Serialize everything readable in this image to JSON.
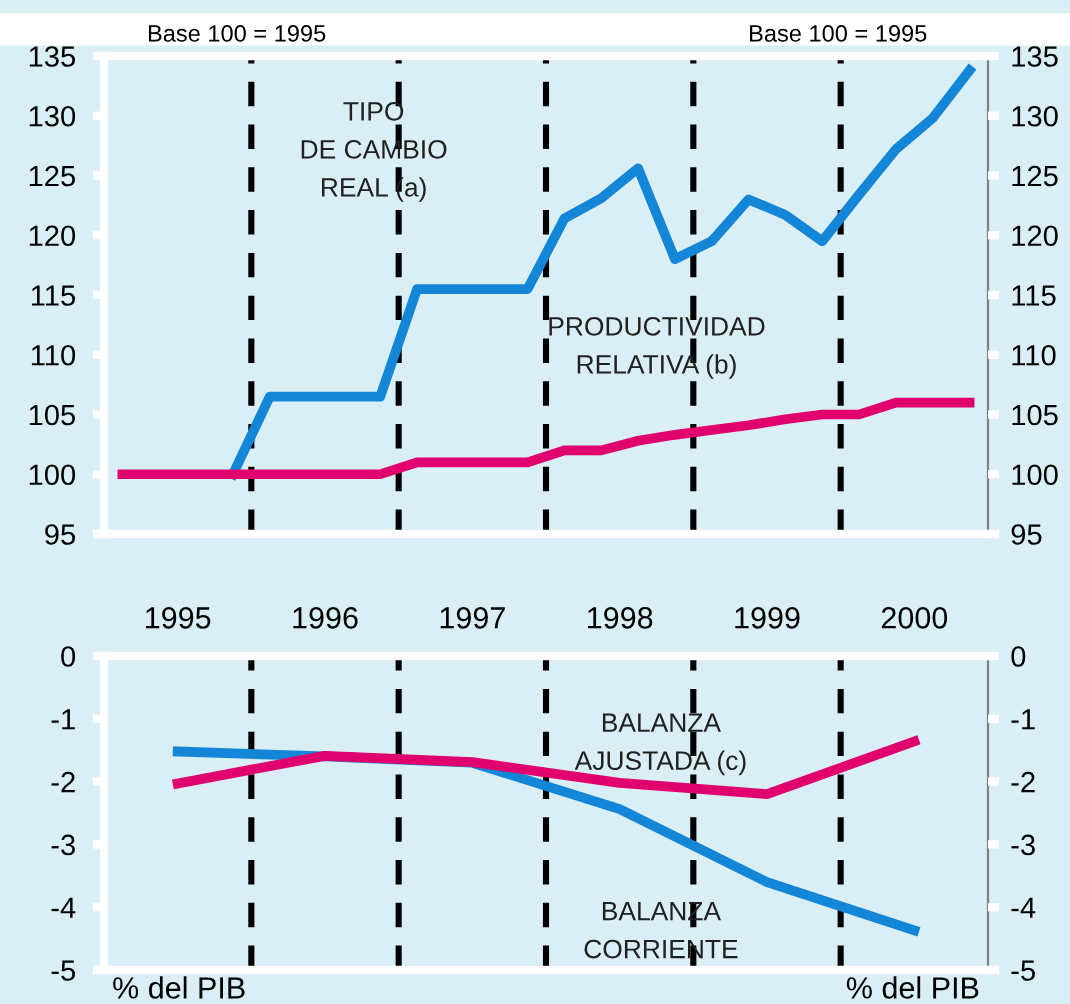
{
  "chart_data": [
    {
      "type": "line",
      "x": [
        1995.125,
        1995.375,
        1995.625,
        1995.875,
        1996.125,
        1996.375,
        1996.625,
        1996.875,
        1997.125,
        1997.375,
        1997.625,
        1997.875,
        1998.125,
        1998.375,
        1998.625,
        1998.875,
        1999.125,
        1999.375,
        1999.625,
        1999.875,
        2000.125,
        2000.375,
        2000.625,
        2000.875
      ],
      "series": [
        {
          "color": "#1386d8",
          "values": [
            null,
            null,
            null,
            100,
            106.5,
            106.5,
            106.5,
            106.5,
            115.5,
            115.5,
            115.5,
            115.5,
            121.4,
            123.1,
            125.6,
            118,
            119.5,
            123,
            121.7,
            119.5,
            123.4,
            127.2,
            129.8,
            133.8
          ]
        },
        {
          "color": "#e0006e",
          "values": [
            100,
            100,
            100,
            100,
            100,
            100,
            100,
            100,
            101,
            101,
            101,
            101,
            102,
            102,
            102.8,
            103.3,
            103.7,
            104.1,
            104.6,
            105,
            105,
            106,
            106,
            106
          ]
        }
      ],
      "xlim": [
        1995,
        2001
      ],
      "xticks": [
        {
          "value": 1995.5,
          "label": "1995"
        },
        {
          "value": 1996.5,
          "label": "1996"
        },
        {
          "value": 1997.5,
          "label": "1997"
        },
        {
          "value": 1998.5,
          "label": "1998"
        },
        {
          "value": 1999.5,
          "label": "1999"
        },
        {
          "value": 2000.5,
          "label": "2000"
        }
      ],
      "ylim": [
        95,
        135
      ],
      "yticks": [
        95,
        100,
        105,
        110,
        115,
        120,
        125,
        130,
        135
      ],
      "y2lim": [
        95,
        135
      ],
      "y2ticks": [
        95,
        100,
        105,
        110,
        115,
        120,
        125,
        130,
        135
      ],
      "ref_lines": [
        {
          "axis": "x",
          "value": 1996,
          "color": "#000000",
          "line_style": "dashed"
        },
        {
          "axis": "x",
          "value": 1997,
          "color": "#000000",
          "line_style": "dashed"
        },
        {
          "axis": "x",
          "value": 1998,
          "color": "#000000",
          "line_style": "dashed"
        },
        {
          "axis": "x",
          "value": 1999,
          "color": "#000000",
          "line_style": "dashed"
        },
        {
          "axis": "x",
          "value": 2000,
          "color": "#000000",
          "line_style": "dashed"
        }
      ],
      "annotations": [
        "Base 100 = 1995",
        "Base 100 = 1995",
        "TIPO\nDE CAMBIO\nREAL (a)",
        "PRODUCTIVIDAD\nRELATIVA (b)"
      ],
      "grid": false,
      "legend": false,
      "line_style": "solid",
      "marker": "none"
    },
    {
      "type": "line",
      "x": [
        1995.5,
        1996.5,
        1997.5,
        1998.5,
        1999.5,
        2000.5
      ],
      "series": [
        {
          "color": "#1386d8",
          "values": [
            -1.52,
            -1.6,
            -1.7,
            -2.44,
            -3.6,
            -4.37
          ]
        },
        {
          "color": "#e0006e",
          "values": [
            -2.03,
            -1.59,
            -1.69,
            -2.02,
            -2.2,
            -1.36
          ]
        }
      ],
      "xlim": [
        1995,
        2001
      ],
      "tick_labels": "y",
      "ylim": [
        -5,
        0
      ],
      "yticks": [
        -5,
        -4,
        -3,
        -2,
        -1,
        0
      ],
      "y2lim": [
        -5,
        0
      ],
      "y2ticks": [
        -5,
        -4,
        -3,
        -2,
        -1,
        0
      ],
      "ref_lines": [
        {
          "axis": "x",
          "value": 1996,
          "color": "#000000",
          "line_style": "dashed"
        },
        {
          "axis": "x",
          "value": 1997,
          "color": "#000000",
          "line_style": "dashed"
        },
        {
          "axis": "x",
          "value": 1998,
          "color": "#000000",
          "line_style": "dashed"
        },
        {
          "axis": "x",
          "value": 1999,
          "color": "#000000",
          "line_style": "dashed"
        },
        {
          "axis": "x",
          "value": 2000,
          "color": "#000000",
          "line_style": "dashed"
        }
      ],
      "annotations": [
        "% del PIB",
        "% del PIB",
        "BALANZA\nCORRIENTE",
        "BALANZA\nAJUSTADA (c)"
      ],
      "grid": false,
      "legend": false,
      "line_style": "solid",
      "marker": "none"
    }
  ]
}
